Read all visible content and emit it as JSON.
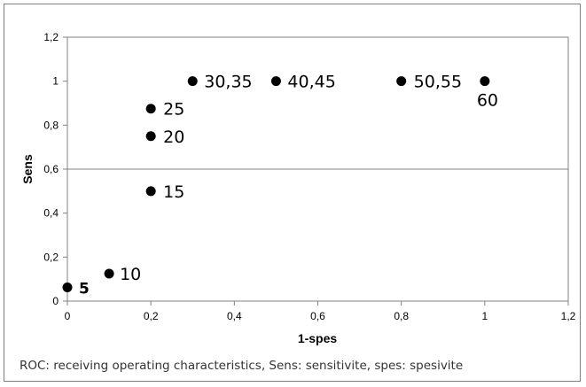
{
  "chart_data": {
    "type": "scatter",
    "xlabel": "1-spes",
    "ylabel": "Sens",
    "xlim": [
      0,
      1.2
    ],
    "ylim": [
      0,
      1.2
    ],
    "x_ticks": [
      "0",
      "0,2",
      "0,4",
      "0,6",
      "0,8",
      "1",
      "1,2"
    ],
    "y_ticks": [
      "0",
      "0,2",
      "0,4",
      "0,6",
      "0,8",
      "1",
      "1,2"
    ],
    "gridlines_y": [
      0.6
    ],
    "points": [
      {
        "x": 0,
        "y": 0.0625,
        "label": "5"
      },
      {
        "x": 0.1,
        "y": 0.125,
        "label": "10"
      },
      {
        "x": 0.2,
        "y": 0.5,
        "label": "15"
      },
      {
        "x": 0.2,
        "y": 0.75,
        "label": "20"
      },
      {
        "x": 0.2,
        "y": 0.875,
        "label": "25"
      },
      {
        "x": 0.3,
        "y": 1,
        "label": "30,35"
      },
      {
        "x": 0.5,
        "y": 1,
        "label": "40,45"
      },
      {
        "x": 0.8,
        "y": 1,
        "label": "50,55"
      },
      {
        "x": 1,
        "y": 1,
        "label": "60"
      }
    ],
    "marker_color": "#000000"
  },
  "caption": "ROC: receiving operating characteristics, Sens: sensitivite, spes: spesivite"
}
